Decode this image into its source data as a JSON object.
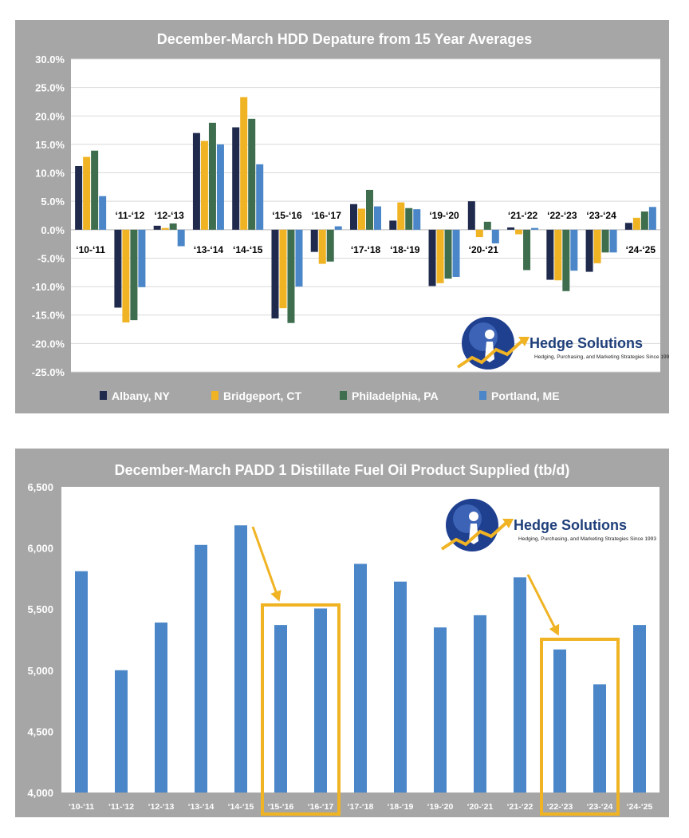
{
  "logo": {
    "name": "Hedge Solutions",
    "tagline": "Hedging, Purchasing, and Marketing Strategies Since 1993"
  },
  "chart_data": [
    {
      "type": "bar",
      "title": "December-March HDD Depature from 15 Year Averages",
      "categories": [
        "'10-'11",
        "'11-'12",
        "'12-'13",
        "'13-'14",
        "'14-'15",
        "'15-'16",
        "'16-'17",
        "'17-'18",
        "'18-'19",
        "'19-'20",
        "'20-'21",
        "'21-'22",
        "'22-'23",
        "'23-'24",
        "'24-'25"
      ],
      "category_labels": [
        "‘10-‘11",
        "‘11-‘12",
        "‘12-‘13",
        "‘13-‘14",
        "‘14-‘15",
        "‘15-‘16",
        "‘16-‘17",
        "‘17-‘18",
        "‘18-‘19",
        "‘19-‘20",
        "‘20-‘21",
        "‘21-‘22",
        "‘22-‘23",
        "‘23-‘24",
        "‘24-‘25"
      ],
      "series": [
        {
          "name": "Albany, NY",
          "color": "#1f2a4d",
          "values": [
            11.2,
            -13.7,
            0.7,
            17.0,
            18.0,
            -15.6,
            -3.9,
            4.5,
            1.6,
            -9.9,
            5.0,
            0.4,
            -8.8,
            -7.4,
            1.2
          ]
        },
        {
          "name": "Bridgeport, CT",
          "color": "#f0b323",
          "values": [
            12.8,
            -16.3,
            0.3,
            15.6,
            23.3,
            -13.8,
            -6.0,
            3.7,
            4.8,
            -9.4,
            -1.3,
            -0.8,
            -8.9,
            -5.9,
            2.1
          ]
        },
        {
          "name": "Philadelphia, PA",
          "color": "#3f6e4f",
          "values": [
            13.9,
            -15.9,
            1.1,
            18.8,
            19.5,
            -16.4,
            -5.6,
            7.0,
            3.8,
            -8.6,
            1.4,
            -7.1,
            -10.8,
            -4.0,
            3.2
          ]
        },
        {
          "name": "Portland, ME",
          "color": "#4a86c8",
          "values": [
            5.9,
            -10.1,
            -2.9,
            15.0,
            11.5,
            -10.0,
            0.6,
            4.1,
            3.6,
            -8.3,
            -2.4,
            0.3,
            -7.2,
            -4.0,
            4.0
          ]
        }
      ],
      "ylim": [
        -25,
        30
      ],
      "yticks": [
        "-25.0%",
        "-20.0%",
        "-15.0%",
        "-10.0%",
        "-5.0%",
        "0.0%",
        "5.0%",
        "10.0%",
        "15.0%",
        "20.0%",
        "25.0%",
        "30.0%"
      ],
      "legend_position": "bottom"
    },
    {
      "type": "bar",
      "title": "December-March PADD 1 Distillate Fuel Oil Product Supplied (tb/d)",
      "categories": [
        "'10-'11",
        "'11-'12",
        "'12-'13",
        "'13-'14",
        "'14-'15",
        "'15-'16",
        "'16-'17",
        "'17-'18",
        "'18-'19",
        "'19-'20",
        "'20-'21",
        "'21-'22",
        "'22-'23",
        "'23-'24",
        "'24-'25"
      ],
      "category_labels": [
        "‘10-‘11",
        "‘11-‘12",
        "‘12-‘13",
        "‘13-‘14",
        "‘14-‘15",
        "‘15-‘16",
        "‘16-‘17",
        "‘17-‘18",
        "‘18-‘19",
        "‘19-‘20",
        "‘20-‘21",
        "‘21-‘22",
        "‘22-‘23",
        "‘23-‘24",
        "‘24-‘25"
      ],
      "values": [
        5810,
        5000,
        5390,
        6025,
        6185,
        5370,
        5505,
        5870,
        5725,
        5350,
        5450,
        5760,
        5170,
        4885,
        5370
      ],
      "color": "#4a86c8",
      "highlight_color": "#f0b323",
      "highlighted_groups": [
        [
          "'15-'16",
          "'16-'17"
        ],
        [
          "'22-'23",
          "'23-'24"
        ]
      ],
      "ylim": [
        4000,
        6500
      ],
      "yticks": [
        "4,000",
        "4,500",
        "5,000",
        "5,500",
        "6,000",
        "6,500"
      ]
    }
  ]
}
